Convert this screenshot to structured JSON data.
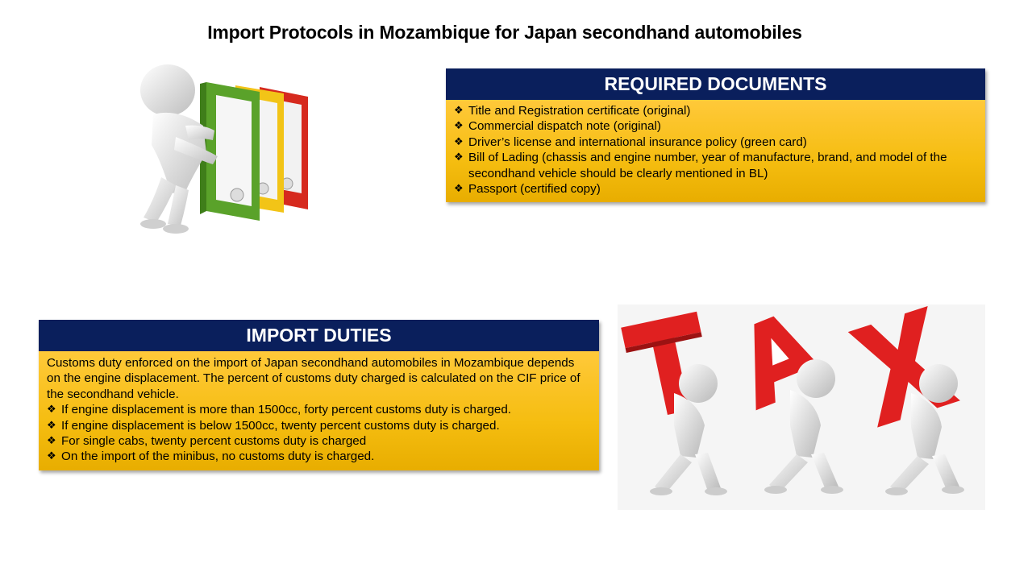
{
  "title": "Import Protocols in Mozambique for Japan secondhand automobiles",
  "required_documents": {
    "heading": "REQUIRED DOCUMENTS",
    "bullet_glyph": "❖",
    "items": [
      "Title and Registration certificate (original)",
      "Commercial dispatch note (original)",
      "Driver’s license and international insurance policy (green card)",
      "Bill of Lading (chassis and engine number, year of manufacture, brand, and model of the secondhand vehicle should be clearly mentioned in BL)",
      "Passport (certified copy)"
    ]
  },
  "import_duties": {
    "heading": "IMPORT DUTIES",
    "intro": "Customs duty enforced on the import of Japan secondhand automobiles in Mozambique depends on the engine displacement. The percent of customs duty charged is calculated on the CIF price of the secondhand vehicle.",
    "bullet_glyph": "❖",
    "items": [
      "If engine displacement is more than 1500cc, forty percent customs duty is charged.",
      "If engine displacement is below 1500cc, twenty percent customs duty is charged.",
      "For single cabs, twenty percent customs duty is charged",
      "On the import of the minibus, no customs duty is charged."
    ]
  },
  "images": {
    "binders": {
      "icon": "figure-pushing-binders-illustration",
      "binder_colors": [
        "#5aa22a",
        "#f2c417",
        "#d62a1e"
      ]
    },
    "tax": {
      "icon": "figures-carrying-tax-letters-illustration",
      "letters": [
        "T",
        "A",
        "X"
      ],
      "letter_color": "#e02020"
    }
  }
}
